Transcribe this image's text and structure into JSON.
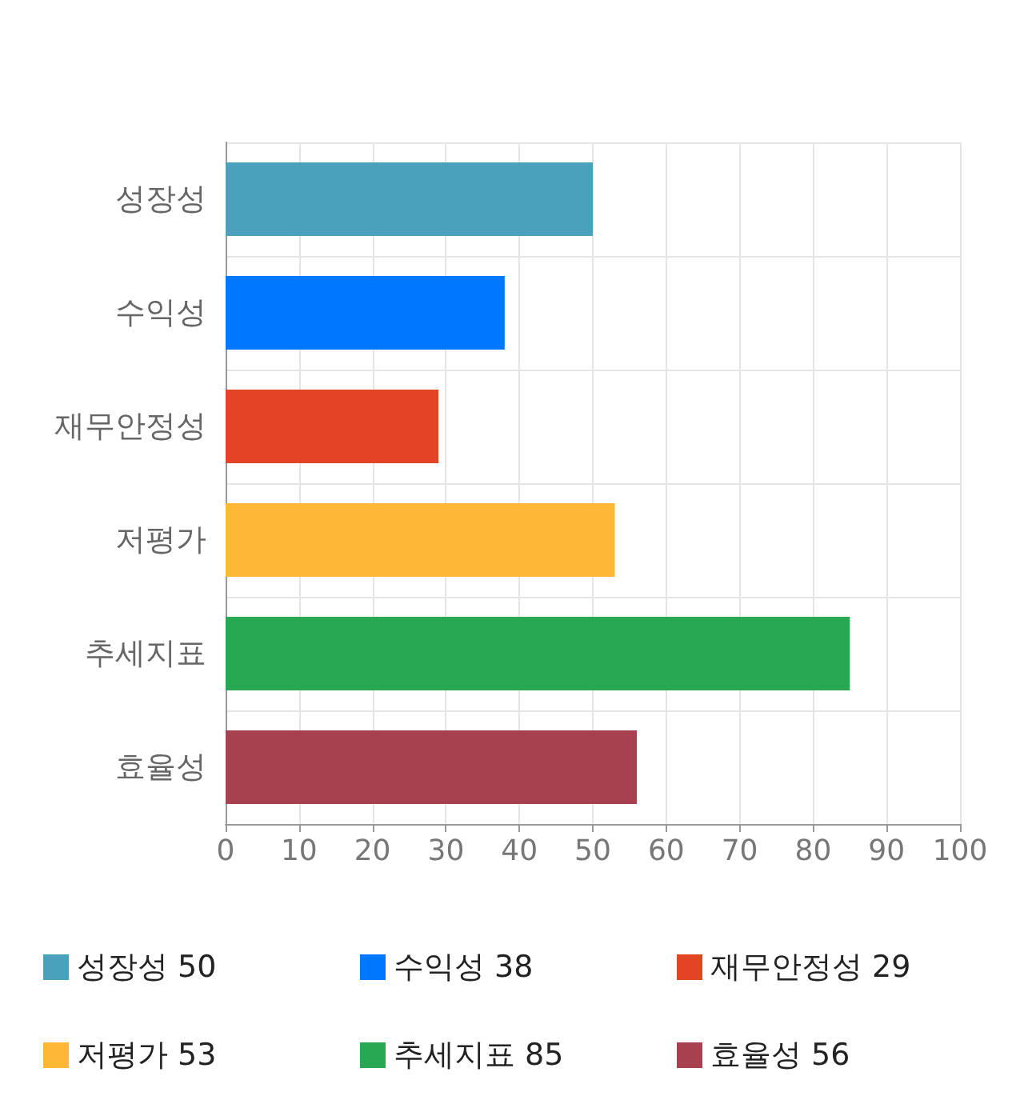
{
  "chart_data": {
    "type": "bar",
    "orientation": "horizontal",
    "stacked": true,
    "categories": [
      "성장성",
      "수익성",
      "재무안정성",
      "저평가",
      "추세지표",
      "효율성"
    ],
    "series": [
      {
        "name": "성장성 50",
        "color": "#4aa1bb",
        "values": [
          50,
          null,
          null,
          null,
          null,
          null
        ]
      },
      {
        "name": "수익성 38",
        "color": "#0077ff",
        "values": [
          null,
          38,
          null,
          null,
          null,
          null
        ]
      },
      {
        "name": "재무안정성 29",
        "color": "#e34524",
        "values": [
          null,
          null,
          29,
          null,
          null,
          null
        ]
      },
      {
        "name": "저평가 53",
        "color": "#ffb833",
        "values": [
          null,
          null,
          null,
          53,
          null,
          null
        ]
      },
      {
        "name": "추세지표 85",
        "color": "#29a854",
        "values": [
          null,
          null,
          null,
          null,
          85,
          null
        ]
      },
      {
        "name": "효율성 56",
        "color": "#a8414f",
        "values": [
          null,
          null,
          null,
          null,
          null,
          56
        ]
      }
    ],
    "xlim": [
      0,
      100
    ],
    "xticks": [
      0,
      10,
      20,
      30,
      40,
      50,
      60,
      70,
      80,
      90,
      100
    ],
    "grid": true,
    "legend": "bottom"
  }
}
